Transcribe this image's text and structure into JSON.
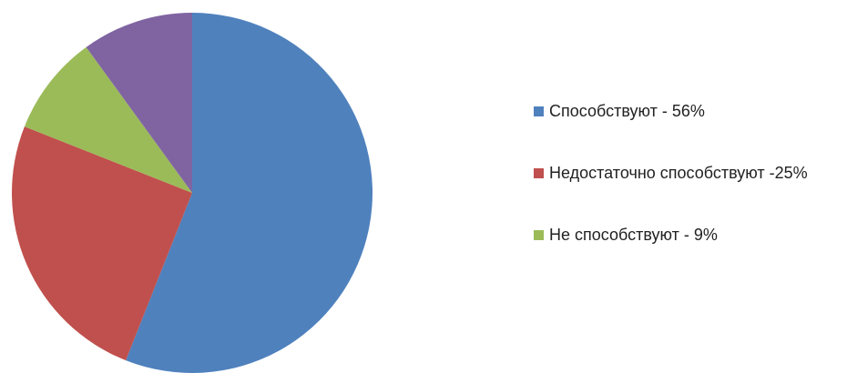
{
  "chart_data": {
    "type": "pie",
    "title": "",
    "slices": [
      {
        "label": "Способствуют - 56%",
        "value": 56,
        "color": "#4F81BD",
        "legend": true
      },
      {
        "label": "Недостаточно способствуют -25%",
        "value": 25,
        "color": "#C0504D",
        "legend": true
      },
      {
        "label": "Не способствуют - 9%",
        "value": 9,
        "color": "#9BBB59",
        "legend": true
      },
      {
        "label": "",
        "value": 10,
        "color": "#8064A2",
        "legend": false
      }
    ],
    "legend_position": "right"
  },
  "legend": {
    "items": [
      {
        "label": "Способствуют - 56%",
        "color": "#4F81BD"
      },
      {
        "label": "Недостаточно способствуют -25%",
        "color": "#C0504D"
      },
      {
        "label": "Не способствуют - 9%",
        "color": "#9BBB59"
      }
    ]
  }
}
